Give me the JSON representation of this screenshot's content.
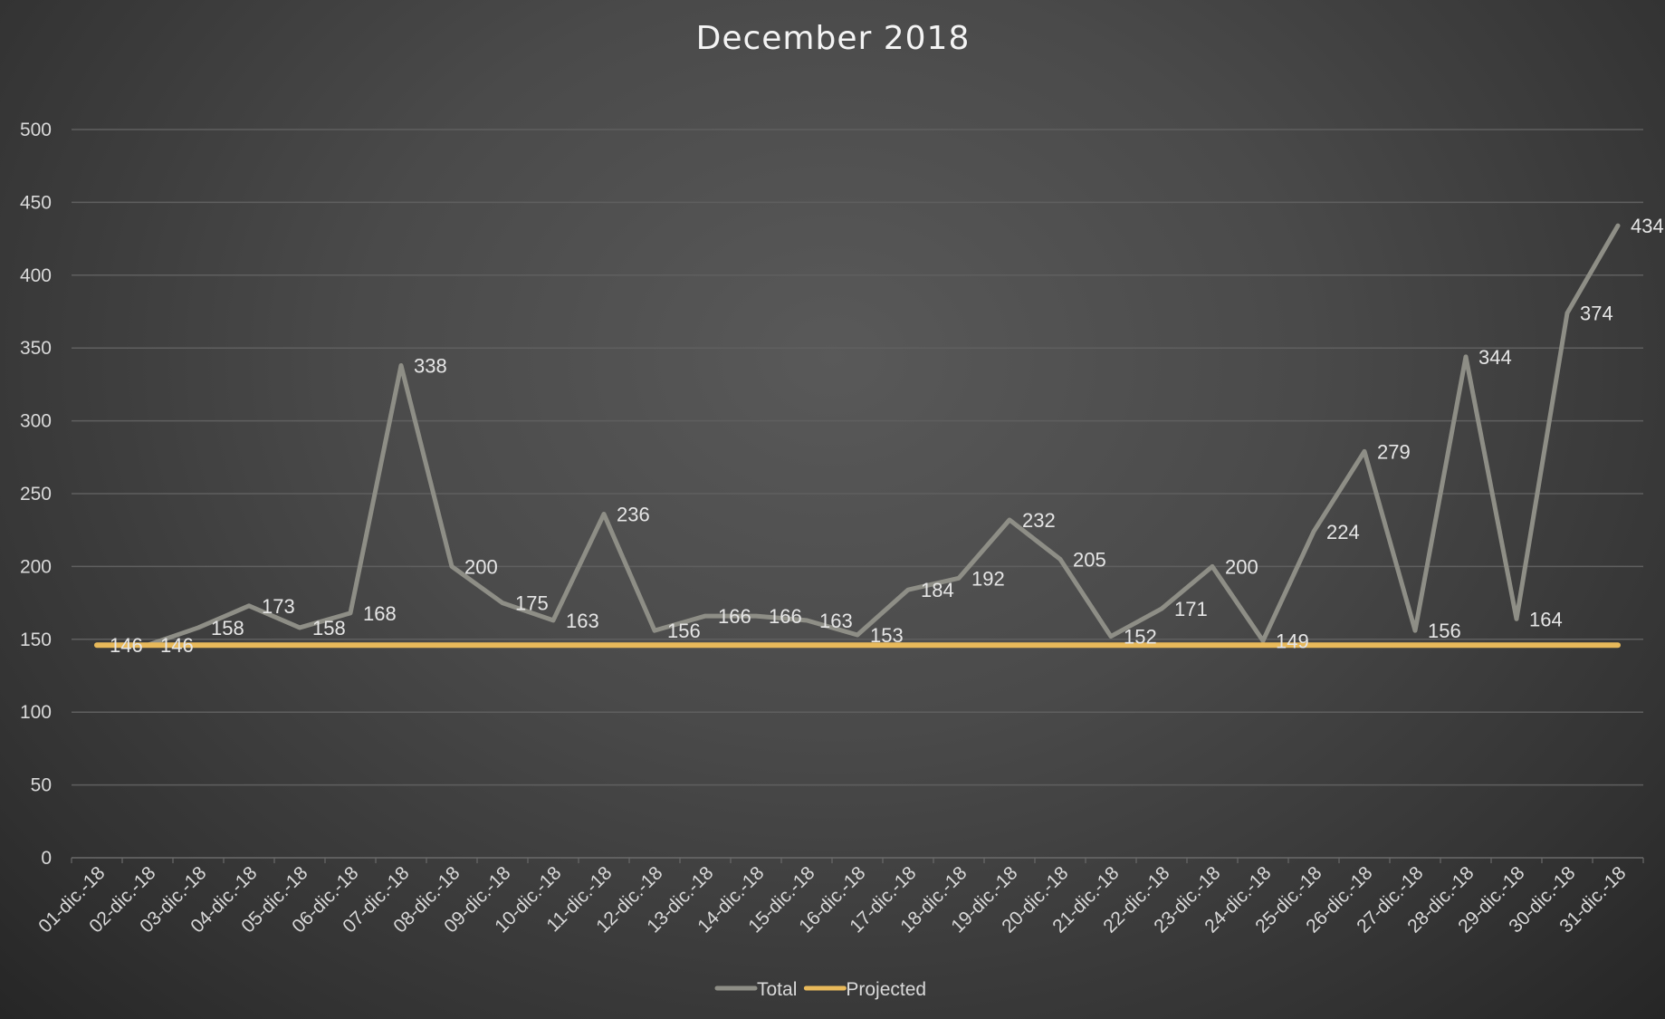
{
  "chart_data": {
    "type": "line",
    "title": "December 2018",
    "xlabel": "",
    "ylabel": "",
    "ylim": [
      0,
      500
    ],
    "yticks": [
      0,
      50,
      100,
      150,
      200,
      250,
      300,
      350,
      400,
      450,
      500
    ],
    "grid": true,
    "legend_position": "bottom",
    "categories": [
      "01-dic.-18",
      "02-dic.-18",
      "03-dic.-18",
      "04-dic.-18",
      "05-dic.-18",
      "06-dic.-18",
      "07-dic.-18",
      "08-dic.-18",
      "09-dic.-18",
      "10-dic.-18",
      "11-dic.-18",
      "12-dic.-18",
      "13-dic.-18",
      "14-dic.-18",
      "15-dic.-18",
      "16-dic.-18",
      "17-dic.-18",
      "18-dic.-18",
      "19-dic.-18",
      "20-dic.-18",
      "21-dic.-18",
      "22-dic.-18",
      "23-dic.-18",
      "24-dic.-18",
      "25-dic.-18",
      "26-dic.-18",
      "27-dic.-18",
      "28-dic.-18",
      "29-dic.-18",
      "30-dic.-18",
      "31-dic.-18"
    ],
    "series": [
      {
        "name": "Total",
        "color": "#8e8e86",
        "data_labels": true,
        "values": [
          146,
          146,
          158,
          173,
          158,
          168,
          338,
          200,
          175,
          163,
          236,
          156,
          166,
          166,
          163,
          153,
          184,
          192,
          232,
          205,
          152,
          171,
          200,
          149,
          224,
          279,
          156,
          344,
          164,
          374,
          434
        ]
      },
      {
        "name": "Projected",
        "color": "#e8b95a",
        "data_labels": false,
        "values": [
          146,
          146,
          146,
          146,
          146,
          146,
          146,
          146,
          146,
          146,
          146,
          146,
          146,
          146,
          146,
          146,
          146,
          146,
          146,
          146,
          146,
          146,
          146,
          146,
          146,
          146,
          146,
          146,
          146,
          146,
          146
        ]
      }
    ]
  }
}
